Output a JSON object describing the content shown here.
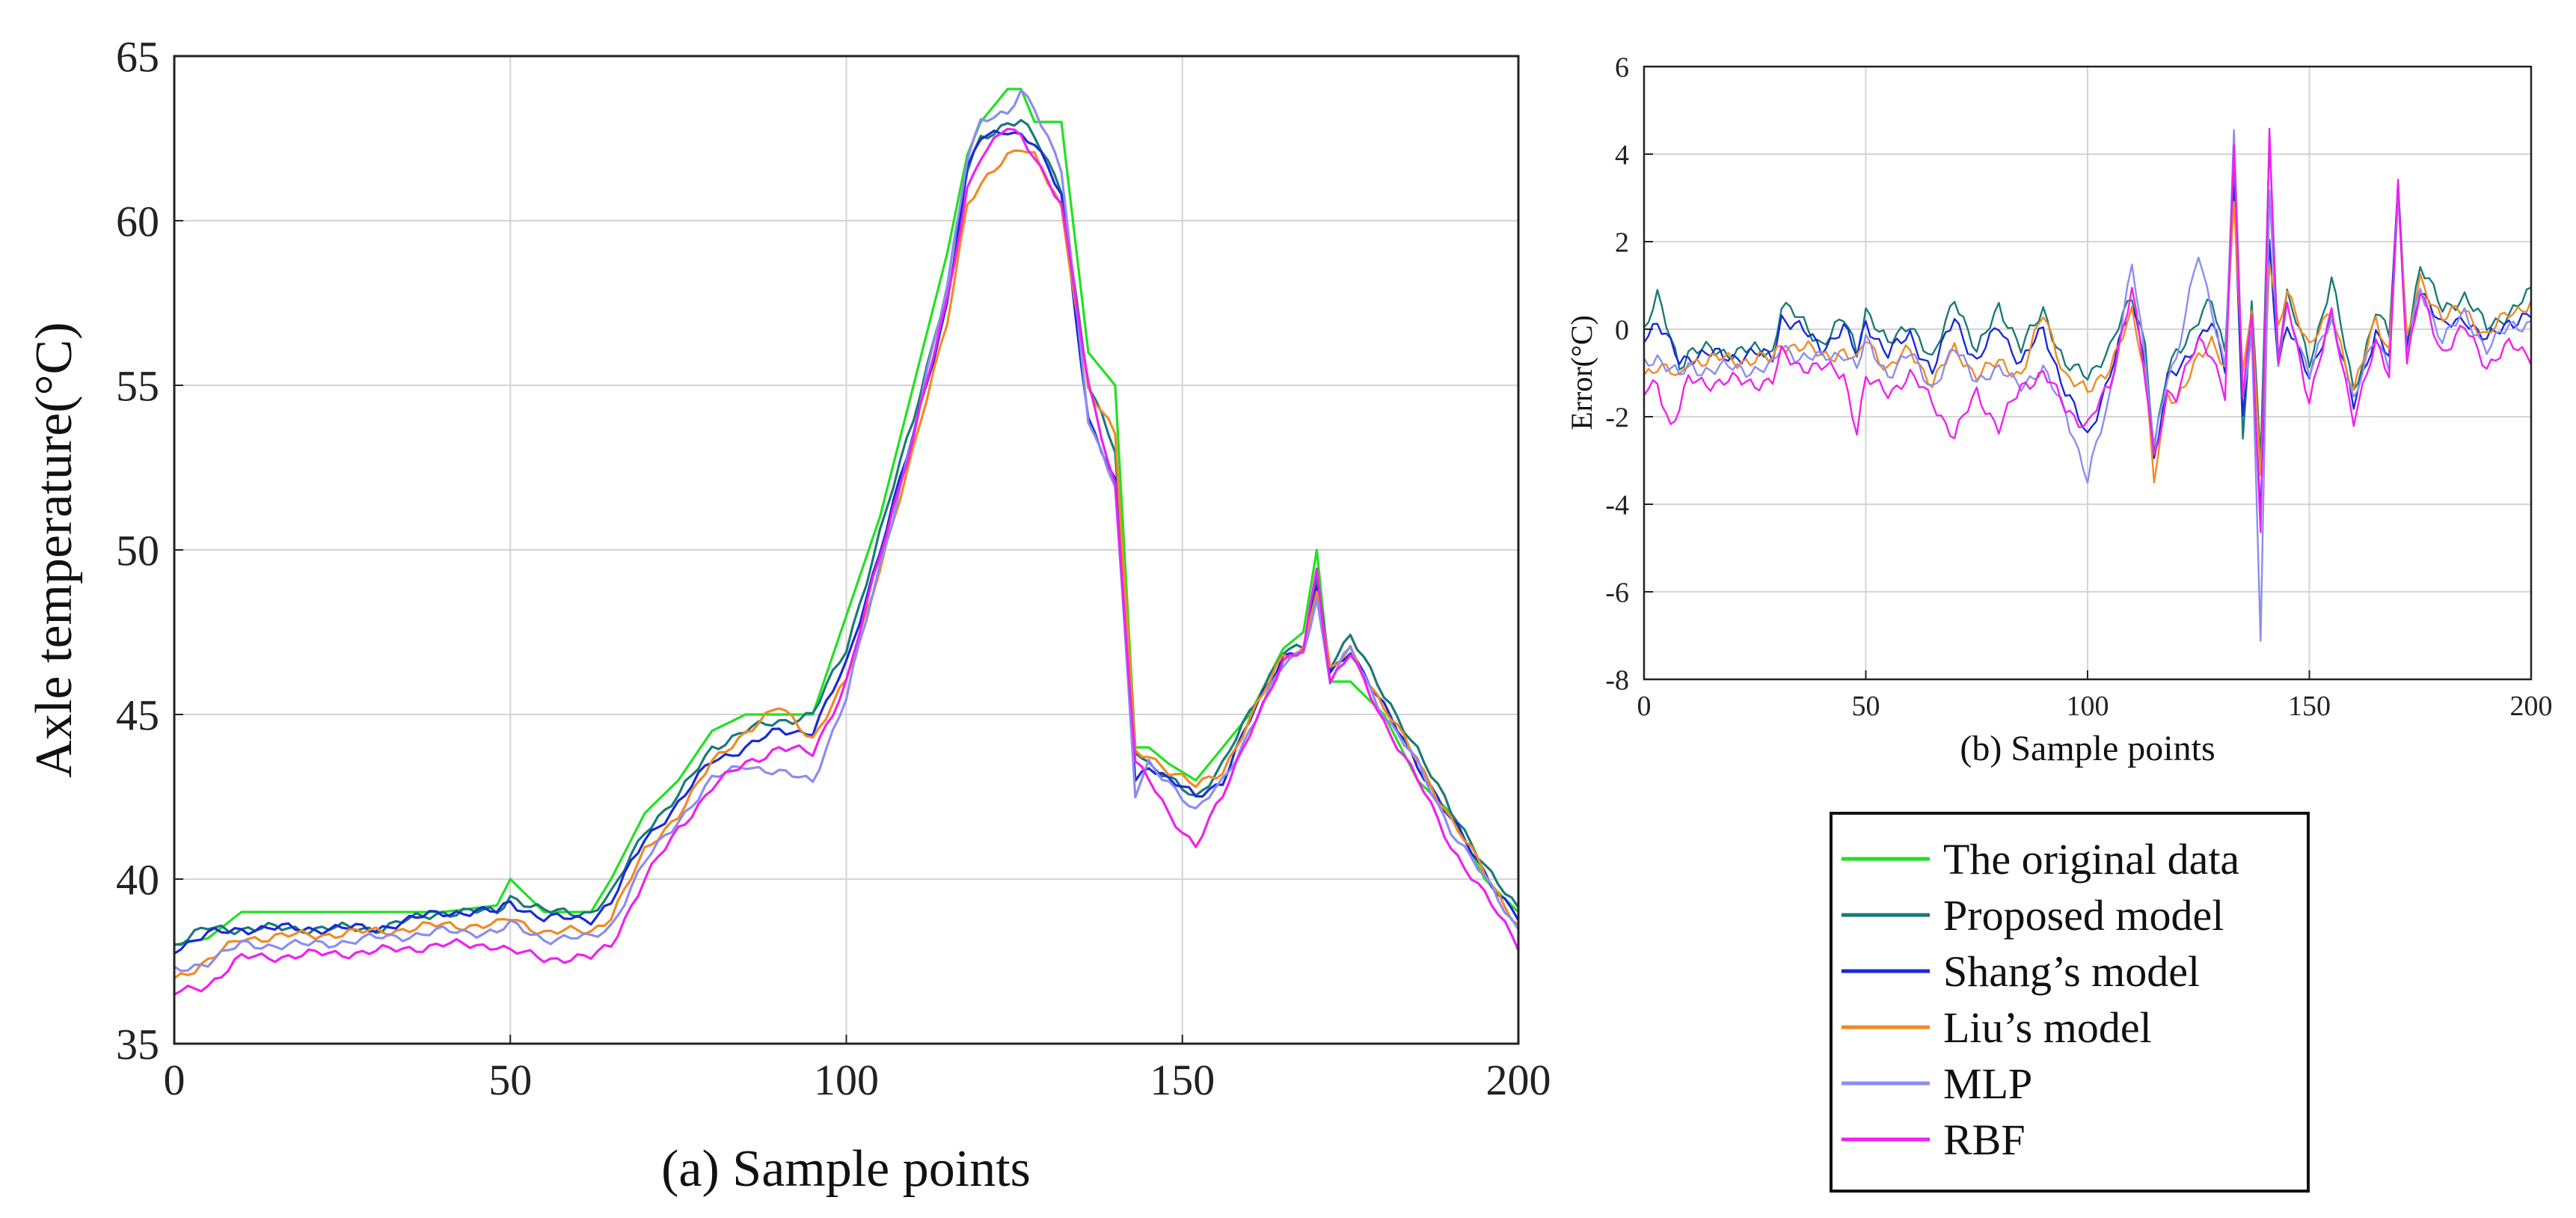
{
  "chart_data": [
    {
      "id": "a",
      "type": "line",
      "title": "",
      "xlabel": "(a) Sample points",
      "ylabel": "Axle temperature(°C)",
      "xlim": [
        0,
        200
      ],
      "ylim": [
        35,
        65
      ],
      "xticks": [
        0,
        50,
        100,
        150,
        200
      ],
      "yticks": [
        35,
        40,
        45,
        50,
        55,
        60,
        65
      ],
      "grid": true,
      "x_knots": [
        0,
        5,
        10,
        20,
        30,
        40,
        48,
        50,
        55,
        62,
        65,
        70,
        75,
        80,
        85,
        90,
        95,
        100,
        105,
        110,
        115,
        118,
        120,
        124,
        126,
        128,
        132,
        136,
        140,
        143,
        145,
        148,
        152,
        156,
        160,
        165,
        168,
        170,
        172,
        175,
        180,
        185,
        190,
        195,
        200
      ],
      "series": [
        {
          "name": "The original data",
          "color": "#22e022",
          "values": [
            38.0,
            38.2,
            39.0,
            39.0,
            39.0,
            39.0,
            39.2,
            40.0,
            39.0,
            39.0,
            40.0,
            42.0,
            43.0,
            44.5,
            45.0,
            45.0,
            45.0,
            48.0,
            51.0,
            55.0,
            59.0,
            62.0,
            63.0,
            64.0,
            64.0,
            63.0,
            63.0,
            56.0,
            55.0,
            44.0,
            44.0,
            43.5,
            43.0,
            44.0,
            45.0,
            47.0,
            47.5,
            50.0,
            46.0,
            46.0,
            45.0,
            43.0,
            42.0,
            40.0,
            39.0
          ]
        },
        {
          "name": "Proposed model",
          "color": "#1a7a78",
          "values": [
            38.0,
            38.5,
            38.5,
            38.5,
            38.5,
            39.0,
            39.0,
            39.5,
            39.0,
            39.0,
            39.5,
            41.5,
            42.5,
            44.0,
            44.5,
            44.8,
            45.0,
            47.0,
            50.5,
            54.0,
            58.0,
            61.5,
            62.5,
            63.0,
            63.0,
            62.5,
            61.0,
            55.0,
            53.0,
            44.0,
            43.5,
            43.0,
            42.5,
            43.5,
            45.0,
            47.0,
            47.0,
            49.0,
            46.5,
            47.5,
            45.5,
            44.0,
            42.0,
            40.5,
            39.0
          ]
        },
        {
          "name": "Shang’s model",
          "color": "#1a2ad6",
          "values": [
            37.9,
            38.3,
            38.5,
            38.5,
            38.5,
            39.0,
            39.0,
            39.3,
            38.8,
            38.8,
            39.3,
            41.2,
            42.3,
            43.6,
            44.0,
            44.5,
            44.5,
            46.5,
            50.0,
            53.5,
            57.5,
            61.5,
            62.5,
            62.8,
            62.6,
            62.3,
            60.8,
            54.0,
            52.0,
            43.0,
            43.5,
            43.0,
            42.5,
            43.0,
            44.8,
            46.8,
            47.0,
            48.8,
            46.2,
            47.0,
            45.2,
            43.5,
            41.8,
            40.2,
            38.8
          ]
        },
        {
          "name": "Liu’s model",
          "color": "#f08a24",
          "values": [
            37.0,
            37.5,
            38.2,
            38.3,
            38.4,
            38.6,
            38.6,
            38.8,
            38.4,
            38.4,
            38.9,
            40.8,
            42.0,
            43.5,
            44.5,
            45.2,
            44.3,
            46.0,
            49.5,
            53.0,
            57.0,
            60.5,
            61.0,
            62.0,
            62.3,
            62.0,
            60.3,
            55.0,
            53.5,
            43.8,
            43.8,
            43.3,
            42.8,
            43.3,
            44.8,
            46.8,
            47.0,
            48.8,
            46.3,
            47.0,
            45.2,
            43.6,
            41.8,
            40.2,
            38.6
          ]
        },
        {
          "name": "MLP",
          "color": "#8c8cf2",
          "values": [
            37.2,
            37.5,
            38.0,
            38.0,
            38.2,
            38.4,
            38.4,
            38.6,
            38.2,
            38.2,
            38.6,
            40.5,
            41.8,
            43.0,
            43.5,
            43.2,
            43.0,
            45.5,
            49.5,
            53.5,
            58.0,
            62.0,
            63.0,
            63.2,
            64.0,
            63.5,
            61.5,
            54.0,
            52.0,
            42.5,
            43.5,
            43.0,
            42.0,
            43.0,
            44.5,
            46.5,
            47.0,
            48.5,
            46.0,
            47.0,
            45.0,
            43.5,
            41.5,
            40.0,
            38.5
          ]
        },
        {
          "name": "RBF",
          "color": "#f020f0",
          "values": [
            36.5,
            36.8,
            37.6,
            37.7,
            37.8,
            38.0,
            38.0,
            37.8,
            37.6,
            37.6,
            38.0,
            40.0,
            41.5,
            42.8,
            43.5,
            44.0,
            43.8,
            46.0,
            49.8,
            53.5,
            57.5,
            61.0,
            62.0,
            62.8,
            62.5,
            62.0,
            60.5,
            55.0,
            52.0,
            43.5,
            43.0,
            42.0,
            41.0,
            42.5,
            44.5,
            46.5,
            47.0,
            49.5,
            46.0,
            46.8,
            44.8,
            43.0,
            41.0,
            39.5,
            38.0
          ]
        }
      ]
    },
    {
      "id": "b",
      "type": "line",
      "title": "",
      "xlabel": "(b) Sample points",
      "ylabel": "Error(°C)",
      "xlim": [
        0,
        200
      ],
      "ylim": [
        -8,
        6
      ],
      "xticks": [
        0,
        50,
        100,
        150,
        200
      ],
      "yticks": [
        -8,
        -6,
        -4,
        -2,
        0,
        2,
        4,
        6
      ],
      "grid": true,
      "x_knots": [
        0,
        3,
        6,
        8,
        10,
        20,
        29,
        31,
        35,
        40,
        45,
        48,
        50,
        55,
        60,
        65,
        70,
        75,
        80,
        85,
        90,
        95,
        100,
        105,
        110,
        113,
        115,
        118,
        120,
        125,
        128,
        131,
        133,
        135,
        137,
        139,
        141,
        143,
        145,
        150,
        155,
        160,
        165,
        168,
        170,
        172,
        175,
        180,
        185,
        190,
        195,
        200
      ],
      "series": [
        {
          "name": "Proposed model",
          "color": "#1a7a78",
          "values": [
            0.0,
            0.7,
            -0.2,
            -0.8,
            -0.5,
            -0.5,
            -0.5,
            0.6,
            0.2,
            -0.3,
            0.2,
            -0.5,
            0.5,
            -0.4,
            0.2,
            -0.8,
            0.8,
            -0.6,
            0.6,
            -0.5,
            0.5,
            -0.9,
            -1.0,
            -0.5,
            0.8,
            -0.3,
            -2.8,
            -1.0,
            -0.5,
            0.2,
            0.6,
            -0.5,
            3.8,
            -2.5,
            0.5,
            -3.0,
            4.3,
            -0.5,
            0.8,
            -0.8,
            1.2,
            -1.5,
            0.5,
            -0.2,
            3.2,
            -0.2,
            1.5,
            0.4,
            0.8,
            0.0,
            0.4,
            0.8
          ]
        },
        {
          "name": "Shang’s model",
          "color": "#1a2ad6",
          "values": [
            -0.1,
            0.1,
            -0.4,
            -0.7,
            -0.6,
            -0.6,
            -0.6,
            0.3,
            0.0,
            -0.4,
            0.0,
            -0.6,
            0.2,
            -0.6,
            -0.1,
            -1.0,
            0.3,
            -0.8,
            0.1,
            -0.8,
            0.0,
            -1.4,
            -2.5,
            -1.0,
            0.5,
            -0.6,
            -3.0,
            -1.2,
            -1.0,
            -0.2,
            0.1,
            -0.9,
            3.2,
            -1.8,
            -0.2,
            -4.3,
            2.0,
            -0.8,
            0.2,
            -1.2,
            0.4,
            -1.8,
            0.0,
            -0.6,
            3.2,
            -0.5,
            1.0,
            0.0,
            0.3,
            -0.3,
            0.2,
            0.3
          ]
        },
        {
          "name": "Liu’s model",
          "color": "#f08a24",
          "values": [
            -1.0,
            -0.8,
            -1.0,
            -1.2,
            -0.7,
            -0.7,
            -0.7,
            -0.3,
            -0.4,
            -0.6,
            -0.5,
            -0.8,
            -0.2,
            -0.9,
            -0.5,
            -1.2,
            -0.5,
            -1.0,
            -0.8,
            -1.0,
            0.3,
            -1.0,
            -1.5,
            -0.8,
            0.3,
            -1.0,
            -3.3,
            -1.5,
            -1.8,
            -0.5,
            -0.3,
            -1.0,
            3.0,
            -1.0,
            0.6,
            -3.5,
            1.5,
            0.0,
            1.0,
            -0.5,
            0.5,
            -1.5,
            0.3,
            -0.5,
            3.0,
            -0.3,
            1.2,
            0.2,
            0.5,
            -0.2,
            0.4,
            0.6
          ]
        },
        {
          "name": "MLP",
          "color": "#8c8cf2",
          "values": [
            -0.8,
            -0.6,
            -0.9,
            -1.1,
            -0.9,
            -0.9,
            -0.9,
            -0.4,
            -0.6,
            -0.7,
            -0.5,
            -0.9,
            -0.3,
            -1.0,
            -0.6,
            -1.3,
            -0.5,
            -1.1,
            -1.0,
            -1.2,
            -1.0,
            -1.8,
            -3.5,
            -1.5,
            1.5,
            -0.8,
            -2.6,
            -1.0,
            -0.8,
            1.8,
            0.5,
            -1.0,
            4.5,
            -1.5,
            0.0,
            -7.0,
            3.0,
            -0.8,
            0.5,
            -1.0,
            0.2,
            -1.6,
            -0.2,
            -0.8,
            3.0,
            -0.6,
            0.9,
            -0.2,
            0.3,
            -0.4,
            0.0,
            0.2
          ]
        },
        {
          "name": "RBF",
          "color": "#f020f0",
          "values": [
            -1.5,
            -1.2,
            -2.2,
            -1.8,
            -1.2,
            -1.2,
            -1.2,
            -0.6,
            -0.8,
            -0.9,
            -1.0,
            -2.3,
            -1.2,
            -1.4,
            -1.1,
            -1.6,
            -2.5,
            -1.4,
            -2.3,
            -1.3,
            -1.0,
            -1.8,
            -2.2,
            -1.3,
            1.0,
            -1.2,
            -3.0,
            -1.4,
            -1.5,
            -0.3,
            -0.5,
            -1.5,
            4.0,
            -1.5,
            0.3,
            -4.5,
            4.6,
            -0.9,
            0.6,
            -1.6,
            0.3,
            -2.0,
            -0.4,
            -1.0,
            3.5,
            -0.8,
            0.8,
            -0.5,
            0.0,
            -0.8,
            -0.4,
            -0.6
          ]
        }
      ]
    }
  ],
  "legend": {
    "items": [
      {
        "label": "The original data",
        "color": "#22e022"
      },
      {
        "label": "Proposed model",
        "color": "#1a7a78"
      },
      {
        "label": "Shang’s model",
        "color": "#1a2ad6"
      },
      {
        "label": "Liu’s model",
        "color": "#f08a24"
      },
      {
        "label": "MLP",
        "color": "#8c8cf2"
      },
      {
        "label": "RBF",
        "color": "#f020f0"
      }
    ]
  }
}
